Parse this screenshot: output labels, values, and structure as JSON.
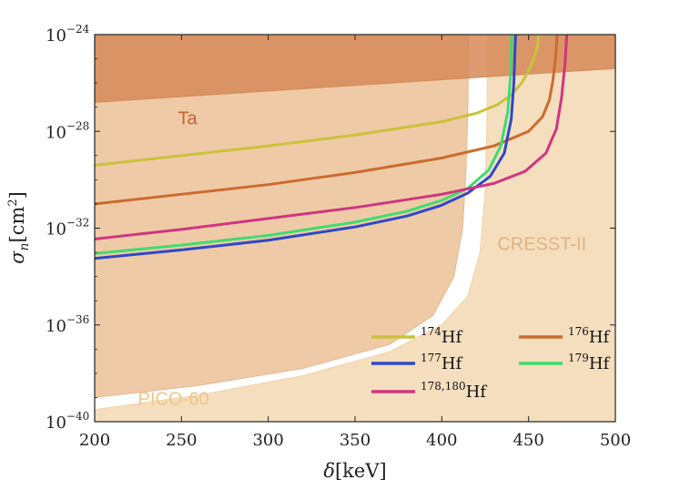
{
  "chart_data": {
    "type": "line",
    "title": "",
    "xlabel": {
      "symbol": "δ",
      "unit": "[keV]"
    },
    "ylabel": {
      "symbol": "σ",
      "sub": "n",
      "unit_pre": "[cm",
      "unit_sup": "2",
      "unit_post": "]"
    },
    "xlim": [
      200,
      500
    ],
    "ylim_log10": [
      -40,
      -24
    ],
    "x_ticks": [
      {
        "value": 200,
        "label": "200"
      },
      {
        "value": 250,
        "label": "250"
      },
      {
        "value": 300,
        "label": "300"
      },
      {
        "value": 350,
        "label": "350"
      },
      {
        "value": 400,
        "label": "400"
      },
      {
        "value": 450,
        "label": "450"
      },
      {
        "value": 500,
        "label": "500"
      }
    ],
    "y_ticks": [
      {
        "value": -24,
        "base": "10",
        "exp": "−24"
      },
      {
        "value": -28,
        "base": "10",
        "exp": "−28"
      },
      {
        "value": -32,
        "base": "10",
        "exp": "−32"
      },
      {
        "value": -36,
        "base": "10",
        "exp": "−36"
      },
      {
        "value": -40,
        "base": "10",
        "exp": "−40"
      }
    ],
    "regions": [
      {
        "name": "PICO-60",
        "label": "PICO-60",
        "fill": "#f2d3a8",
        "label_color": "#f0c486",
        "label_at": [
          225,
          -39.3
        ],
        "points": [
          [
            200,
            -40
          ],
          [
            200,
            -39.5
          ],
          [
            260,
            -38.9
          ],
          [
            320,
            -38.1
          ],
          [
            370,
            -37.1
          ],
          [
            400,
            -36.0
          ],
          [
            415,
            -34.8
          ],
          [
            422,
            -33.0
          ],
          [
            425,
            -30.5
          ],
          [
            426,
            -27.5
          ],
          [
            426.5,
            -24
          ],
          [
            500,
            -24
          ],
          [
            500,
            -40
          ]
        ],
        "closed_from_top": true
      },
      {
        "name": "CRESST-II",
        "label": "CRESST-II",
        "fill": "#e9b88a",
        "label_color": "#e2b183",
        "label_at": [
          432,
          -32.9
        ],
        "points": [
          [
            200,
            -39.0
          ],
          [
            260,
            -38.5
          ],
          [
            320,
            -37.8
          ],
          [
            370,
            -36.8
          ],
          [
            395,
            -35.6
          ],
          [
            407,
            -34.0
          ],
          [
            412,
            -32.0
          ],
          [
            414,
            -29.5
          ],
          [
            415,
            -27.0
          ],
          [
            415.5,
            -24
          ]
        ]
      },
      {
        "name": "Ta",
        "label": "Ta",
        "fill": "#d68a58",
        "label_color": "#c9632e",
        "label_at": [
          248,
          -27.7
        ],
        "points": [
          [
            200,
            -26.8
          ],
          [
            500,
            -25.4
          ],
          [
            500,
            -24
          ],
          [
            200,
            -24
          ]
        ]
      }
    ],
    "series": [
      {
        "name": "174Hf",
        "mass": "174",
        "element": "Hf",
        "color": "#c9c23a",
        "x": [
          200,
          250,
          300,
          350,
          400,
          420,
          432,
          440,
          446,
          450,
          453,
          455,
          456
        ],
        "y": [
          -29.4,
          -29.0,
          -28.6,
          -28.15,
          -27.6,
          -27.25,
          -26.9,
          -26.5,
          -26.0,
          -25.5,
          -25.0,
          -24.5,
          -24.0
        ]
      },
      {
        "name": "176Hf",
        "mass": "176",
        "element": "Hf",
        "color": "#cc6b2e",
        "x": [
          200,
          250,
          300,
          350,
          400,
          430,
          450,
          458,
          462,
          464,
          465.5,
          466.5
        ],
        "y": [
          -31.0,
          -30.6,
          -30.2,
          -29.7,
          -29.1,
          -28.6,
          -28.0,
          -27.4,
          -26.7,
          -25.9,
          -25.0,
          -24.0
        ]
      },
      {
        "name": "177Hf",
        "mass": "177",
        "element": "Hf",
        "color": "#2f47c8",
        "x": [
          200,
          250,
          300,
          350,
          380,
          400,
          415,
          428,
          436,
          440,
          441.5,
          442.5
        ],
        "y": [
          -33.25,
          -32.9,
          -32.5,
          -31.95,
          -31.5,
          -31.05,
          -30.55,
          -29.85,
          -28.9,
          -27.5,
          -26.0,
          -24.0
        ]
      },
      {
        "name": "179Hf",
        "mass": "179",
        "element": "Hf",
        "color": "#3fdc6f",
        "x": [
          200,
          250,
          300,
          350,
          380,
          400,
          415,
          427,
          434,
          438,
          439.5,
          440.3
        ],
        "y": [
          -33.05,
          -32.7,
          -32.3,
          -31.75,
          -31.3,
          -30.85,
          -30.35,
          -29.6,
          -28.6,
          -27.2,
          -25.8,
          -24.0
        ]
      },
      {
        "name": "178,180Hf",
        "mass": "178,180",
        "element": "Hf",
        "color": "#d0357f",
        "x": [
          200,
          250,
          300,
          350,
          400,
          430,
          448,
          460,
          466,
          469,
          471,
          472
        ],
        "y": [
          -32.45,
          -32.05,
          -31.6,
          -31.15,
          -30.6,
          -30.15,
          -29.65,
          -28.9,
          -27.9,
          -26.6,
          -25.2,
          -24.0
        ]
      }
    ],
    "legend": {
      "placement": "lower-right",
      "columns": 2,
      "order": [
        "174Hf",
        "176Hf",
        "177Hf",
        "179Hf",
        "178,180Hf"
      ]
    }
  }
}
